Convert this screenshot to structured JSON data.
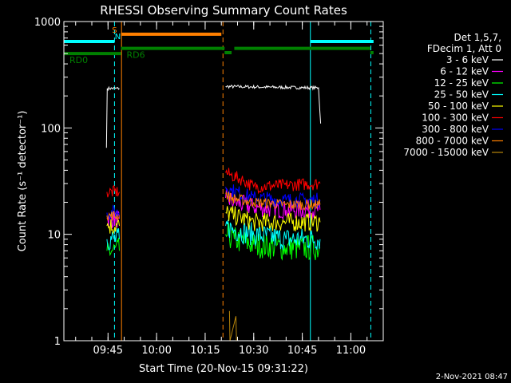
{
  "chart_data": {
    "type": "line",
    "title": "RHESSI Observing Summary Count Rates",
    "xlabel": "Start Time (20-Nov-15 09:31:22)",
    "ylabel": "Count Rate (s⁻¹ detector⁻¹)",
    "y_scale": "log",
    "ylim": [
      1,
      1000
    ],
    "xlim": [
      "09:31:22",
      "11:10:00"
    ],
    "x_ticks": [
      "09:45",
      "10:00",
      "10:15",
      "10:30",
      "10:45",
      "11:00"
    ],
    "y_ticks": [
      "1",
      "10",
      "100",
      "1000"
    ],
    "legend_header": [
      "Det 1,5,7,",
      "FDecim 1, Att 0"
    ],
    "legend_position": "right",
    "footer": "2-Nov-2021 08:47",
    "series": [
      {
        "name": "3 - 6 keV",
        "color": "#ffffff",
        "segments": [
          {
            "t": [
              "09:44:30",
              "09:44:45",
              "09:48:30"
            ],
            "values": [
              65,
              235,
              235
            ]
          },
          {
            "t": [
              "10:21:20",
              "10:50:00",
              "10:50:40"
            ],
            "values": [
              245,
              238,
              110
            ]
          }
        ]
      },
      {
        "name": "6 - 12 keV",
        "color": "#ff00ff",
        "segments": [
          {
            "t": [
              "09:44:40",
              "09:48:30"
            ],
            "values": [
              14,
              14
            ]
          },
          {
            "t": [
              "10:21:20",
              "10:24:00",
              "10:30:00",
              "10:40:00",
              "10:50:30"
            ],
            "values": [
              22,
              20,
              18,
              17,
              17
            ]
          }
        ]
      },
      {
        "name": "12 - 25 keV",
        "color": "#00ff00",
        "segments": [
          {
            "t": [
              "09:44:40",
              "09:48:30"
            ],
            "values": [
              7,
              7
            ]
          },
          {
            "t": [
              "10:21:20",
              "10:24:00",
              "10:30:00",
              "10:40:00",
              "10:50:30"
            ],
            "values": [
              10,
              9,
              8,
              7.5,
              7.5
            ]
          }
        ]
      },
      {
        "name": "25 - 50 keV",
        "color": "#00ffff",
        "segments": [
          {
            "t": [
              "09:44:40",
              "09:48:30"
            ],
            "values": [
              9,
              9
            ]
          },
          {
            "t": [
              "10:21:20",
              "10:24:00",
              "10:30:00",
              "10:40:00",
              "10:50:30"
            ],
            "values": [
              12,
              11,
              10,
              9,
              9
            ]
          }
        ]
      },
      {
        "name": "50 - 100 keV",
        "color": "#ffff00",
        "segments": [
          {
            "t": [
              "09:44:40",
              "09:48:30"
            ],
            "values": [
              12,
              12
            ]
          },
          {
            "t": [
              "10:21:20",
              "10:24:00",
              "10:30:00",
              "10:40:00",
              "10:50:30"
            ],
            "values": [
              16,
              15,
              13,
              13,
              13
            ]
          }
        ]
      },
      {
        "name": "100 - 300 keV",
        "color": "#ff0000",
        "segments": [
          {
            "t": [
              "09:44:40",
              "09:48:30"
            ],
            "values": [
              25,
              25
            ]
          },
          {
            "t": [
              "10:21:20",
              "10:23:00",
              "10:27:00",
              "10:30:00",
              "10:40:00",
              "10:50:30"
            ],
            "values": [
              38,
              36,
              32,
              28,
              29,
              30
            ]
          }
        ]
      },
      {
        "name": "300 - 800 keV",
        "color": "#0000ff",
        "segments": [
          {
            "t": [
              "09:44:40",
              "09:48:30"
            ],
            "values": [
              16,
              16
            ]
          },
          {
            "t": [
              "10:21:20",
              "10:23:00",
              "10:30:00",
              "10:40:00",
              "10:50:30"
            ],
            "values": [
              28,
              26,
              22,
              21,
              21
            ]
          }
        ]
      },
      {
        "name": "800 - 7000 keV",
        "color": "#ff8000",
        "segments": [
          {
            "t": [
              "09:44:40",
              "09:48:30"
            ],
            "values": [
              15,
              15
            ]
          },
          {
            "t": [
              "10:21:20",
              "10:23:00",
              "10:30:00",
              "10:40:00",
              "10:50:30"
            ],
            "values": [
              24,
              22,
              20,
              19,
              19
            ]
          }
        ]
      },
      {
        "name": "7000 - 15000 keV",
        "color": "#b8860b",
        "segments": [
          {
            "t": [
              "10:22:30",
              "10:22:40",
              "10:24:30",
              "10:24:40"
            ],
            "values": [
              1.9,
              1.0,
              1.7,
              1.0
            ]
          }
        ]
      }
    ],
    "state_bars": [
      {
        "label": "RD0",
        "color": "#008000",
        "level": 500,
        "t": [
          "09:31:22",
          "09:49:00"
        ]
      },
      {
        "label": "RD6",
        "color": "#008000",
        "level": 560,
        "t": [
          "09:49:00",
          "10:21:00"
        ]
      },
      {
        "label": "",
        "color": "#008000",
        "level": 510,
        "t": [
          "10:21:00",
          "10:23:10"
        ]
      },
      {
        "label": "",
        "color": "#008000",
        "level": 560,
        "t": [
          "10:24:00",
          "11:06:00"
        ]
      },
      {
        "label": "",
        "color": "#008000",
        "level": 510,
        "t": [
          "11:06:00",
          "11:07:00"
        ]
      },
      {
        "label": "",
        "color": "#00ffff",
        "level": 650,
        "t": [
          "09:31:22",
          "09:47:00"
        ]
      },
      {
        "label": "",
        "color": "#00ffff",
        "level": 650,
        "t": [
          "10:47:30",
          "11:07:00"
        ]
      },
      {
        "label": "",
        "color": "#ff8000",
        "level": 760,
        "t": [
          "09:49:00",
          "10:20:00"
        ]
      }
    ],
    "state_letters": [
      {
        "text": "S",
        "color": "#ff8000",
        "t": "09:47:00"
      },
      {
        "text": "N",
        "color": "#00ffff",
        "t": "09:48:00"
      }
    ],
    "vlines": [
      {
        "t": "09:31:22",
        "color": "#00ffff",
        "style": "solid"
      },
      {
        "t": "09:47:00",
        "color": "#00ffff",
        "style": "dashed"
      },
      {
        "t": "09:49:10",
        "color": "#ff8000",
        "style": "solid"
      },
      {
        "t": "10:20:30",
        "color": "#ff8000",
        "style": "dashed"
      },
      {
        "t": "10:47:30",
        "color": "#00ffff",
        "style": "solid"
      },
      {
        "t": "11:06:10",
        "color": "#00ffff",
        "style": "dashed"
      }
    ]
  }
}
